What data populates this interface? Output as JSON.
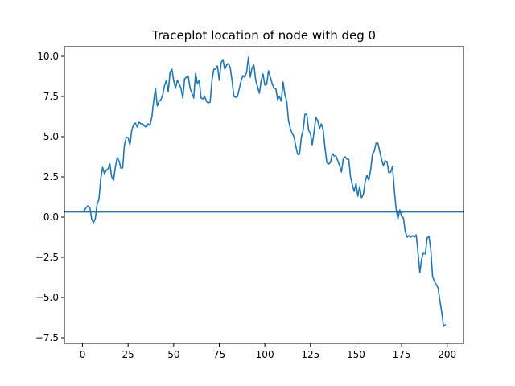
{
  "chart_data": {
    "type": "line",
    "title": "Traceplot location of node with deg 0",
    "xlabel": "",
    "ylabel": "",
    "xlim": [
      -9.95,
      208.95
    ],
    "ylim": [
      -7.85,
      10.6
    ],
    "xticks": [
      0,
      25,
      50,
      75,
      100,
      125,
      150,
      175,
      200
    ],
    "yticks": [
      -7.5,
      -5.0,
      -2.5,
      0.0,
      2.5,
      5.0,
      7.5,
      10.0
    ],
    "xtick_labels": [
      "0",
      "25",
      "50",
      "75",
      "100",
      "125",
      "150",
      "175",
      "200"
    ],
    "ytick_labels": [
      "−7.5",
      "−5.0",
      "−2.5",
      "0.0",
      "2.5",
      "5.0",
      "7.5",
      "10.0"
    ],
    "grid": false,
    "color": "#1f77b4",
    "hline": {
      "y": 0.32
    },
    "series": [
      {
        "x": [
          0,
          1,
          2,
          3,
          4,
          5,
          6,
          7,
          8,
          9,
          10,
          11,
          12,
          13,
          14,
          15,
          16,
          17,
          18,
          19,
          20,
          21,
          22,
          23,
          24,
          25,
          26,
          27,
          28,
          29,
          30,
          31,
          32,
          33,
          34,
          35,
          36,
          37,
          38,
          39,
          40,
          41,
          42,
          43,
          44,
          45,
          46,
          47,
          48,
          49,
          50,
          51,
          52,
          53,
          54,
          55,
          56,
          57,
          58,
          59,
          60,
          61,
          62,
          63,
          64,
          65,
          66,
          67,
          68,
          69,
          70,
          71,
          72,
          73,
          74,
          75,
          76,
          77,
          78,
          79,
          80,
          81,
          82,
          83,
          84,
          85,
          86,
          87,
          88,
          89,
          90,
          91,
          92,
          93,
          94,
          95,
          96,
          97,
          98,
          99,
          100,
          101,
          102,
          103,
          104,
          105,
          106,
          107,
          108,
          109,
          110,
          111,
          112,
          113,
          114,
          115,
          116,
          117,
          118,
          119,
          120,
          121,
          122,
          123,
          124,
          125,
          126,
          127,
          128,
          129,
          130,
          131,
          132,
          133,
          134,
          135,
          136,
          137,
          138,
          139,
          140,
          141,
          142,
          143,
          144,
          145,
          146,
          147,
          148,
          149,
          150,
          151,
          152,
          153,
          154,
          155,
          156,
          157,
          158,
          159,
          160,
          161,
          162,
          163,
          164,
          165,
          166,
          167,
          168,
          169,
          170,
          171,
          172,
          173,
          174,
          175,
          176,
          177,
          178,
          179,
          180,
          181,
          182,
          183,
          184,
          185,
          186,
          187,
          188,
          189,
          190,
          191,
          192,
          193,
          194,
          195,
          196,
          197,
          198,
          199
        ],
        "values": [
          0.35,
          0.4,
          0.6,
          0.7,
          0.6,
          -0.1,
          -0.35,
          -0.1,
          0.8,
          1.1,
          2.4,
          3.1,
          2.7,
          2.9,
          3.0,
          3.3,
          2.5,
          2.3,
          3.1,
          3.7,
          3.5,
          3.05,
          3.05,
          4.5,
          4.95,
          4.95,
          4.5,
          5.4,
          5.75,
          5.85,
          5.6,
          5.9,
          5.8,
          5.8,
          5.65,
          5.6,
          5.8,
          5.7,
          6.2,
          7.2,
          8.0,
          6.9,
          7.2,
          7.3,
          7.6,
          8.2,
          8.5,
          7.8,
          9.0,
          9.2,
          8.5,
          8.0,
          8.5,
          8.3,
          8.0,
          7.4,
          8.6,
          8.7,
          8.75,
          8.0,
          7.7,
          7.4,
          8.95,
          8.3,
          8.5,
          7.4,
          7.35,
          7.5,
          7.2,
          7.1,
          7.15,
          8.5,
          9.2,
          9.2,
          9.4,
          8.5,
          9.6,
          9.8,
          9.2,
          9.45,
          9.55,
          9.3,
          8.5,
          7.5,
          7.45,
          7.5,
          8.0,
          8.5,
          8.8,
          8.7,
          9.0,
          9.95,
          8.7,
          9.3,
          9.45,
          8.5,
          8.1,
          7.7,
          8.5,
          8.9,
          8.2,
          8.25,
          9.1,
          8.7,
          8.3,
          8.0,
          8.0,
          7.3,
          7.5,
          7.2,
          8.4,
          7.6,
          7.2,
          6.0,
          5.5,
          5.2,
          5.0,
          4.4,
          3.9,
          3.9,
          4.95,
          5.4,
          6.4,
          6.4,
          5.4,
          5.2,
          4.5,
          5.3,
          6.2,
          6.0,
          5.5,
          5.8,
          5.4,
          4.3,
          3.4,
          3.3,
          3.4,
          3.95,
          3.8,
          3.8,
          3.5,
          3.2,
          2.8,
          3.6,
          3.75,
          3.6,
          3.6,
          2.5,
          2.0,
          1.6,
          2.1,
          1.3,
          1.9,
          1.2,
          1.4,
          2.2,
          2.6,
          2.3,
          2.9,
          3.9,
          4.1,
          4.6,
          4.6,
          4.1,
          3.6,
          3.2,
          3.5,
          3.45,
          2.75,
          2.8,
          3.15,
          1.7,
          0.5,
          -0.1,
          0.45,
          0.05,
          -0.05,
          -0.9,
          -1.25,
          -1.15,
          -1.25,
          -1.15,
          -1.25,
          -1.1,
          -2.2,
          -3.45,
          -2.6,
          -2.2,
          -2.3,
          -1.3,
          -1.2,
          -2.0,
          -3.7,
          -4.0,
          -4.2,
          -4.4,
          -5.2,
          -5.9,
          -6.8,
          -6.7
        ]
      }
    ]
  }
}
